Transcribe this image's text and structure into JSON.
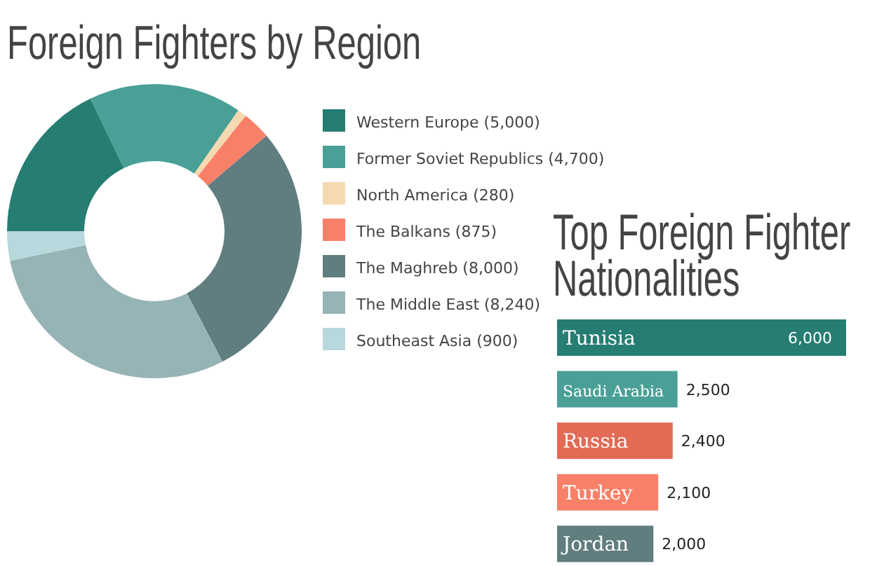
{
  "chart_data": [
    {
      "type": "donut",
      "title": "Foreign Fighters by Region",
      "categories": [
        "Western Europe (5,000)",
        "Former Soviet Republics (4,700)",
        "North America (280)",
        "The Balkans (875)",
        "The Maghreb (8,000)",
        "The Middle East (8,240)",
        "Southeast Asia (900)"
      ],
      "values": [
        5000,
        4700,
        280,
        875,
        8000,
        8240,
        900
      ],
      "colors": [
        "#267d72",
        "#4aa096",
        "#f5d9b0",
        "#f98068",
        "#607d80",
        "#96b3b5",
        "#b7d8dc"
      ],
      "legend": "right"
    },
    {
      "type": "bar",
      "orientation": "horizontal",
      "title": "Top Foreign Fighter Nationalities",
      "categories": [
        "Tunisia",
        "Saudi Arabia",
        "Russia",
        "Turkey",
        "Jordan"
      ],
      "values": [
        6000,
        2500,
        2400,
        2100,
        2000
      ],
      "colors": [
        "#267d72",
        "#4aa096",
        "#e36a54",
        "#f98068",
        "#607d80"
      ],
      "value_labels": [
        "6,000",
        "2,500",
        "2,400",
        "2,100",
        "2,000"
      ]
    }
  ]
}
